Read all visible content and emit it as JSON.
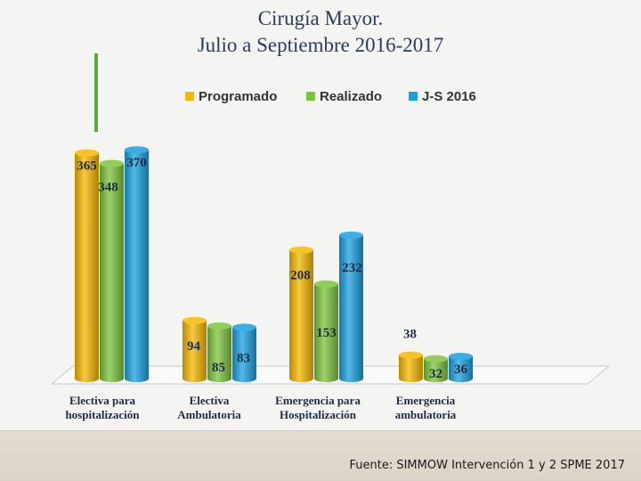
{
  "page": {
    "title_line1": "Cirugía Mayor.",
    "title_line2": "Julio a Septiembre 2016-2017",
    "source": "Fuente: SIMMOW Intervención 1 y 2  SPME 2017"
  },
  "chart_data": {
    "type": "bar",
    "categories": [
      [
        "Electiva para",
        "hospitalización"
      ],
      [
        "Electiva",
        "Ambulatoria"
      ],
      [
        "Emergencia para",
        "Hospitalización"
      ],
      [
        "Emergencia",
        "ambulatoria"
      ]
    ],
    "series": [
      {
        "name": "Programado",
        "color": "#f5b800",
        "values": [
          365,
          94,
          208,
          38
        ]
      },
      {
        "name": "Realizado",
        "color": "#7cc43c",
        "values": [
          348,
          85,
          153,
          32
        ]
      },
      {
        "name": "J-S 2016",
        "color": "#1aa0e0",
        "values": [
          370,
          83,
          232,
          36
        ]
      }
    ],
    "ylim": [
      0,
      400
    ],
    "grid": false,
    "legend_position": "top"
  }
}
